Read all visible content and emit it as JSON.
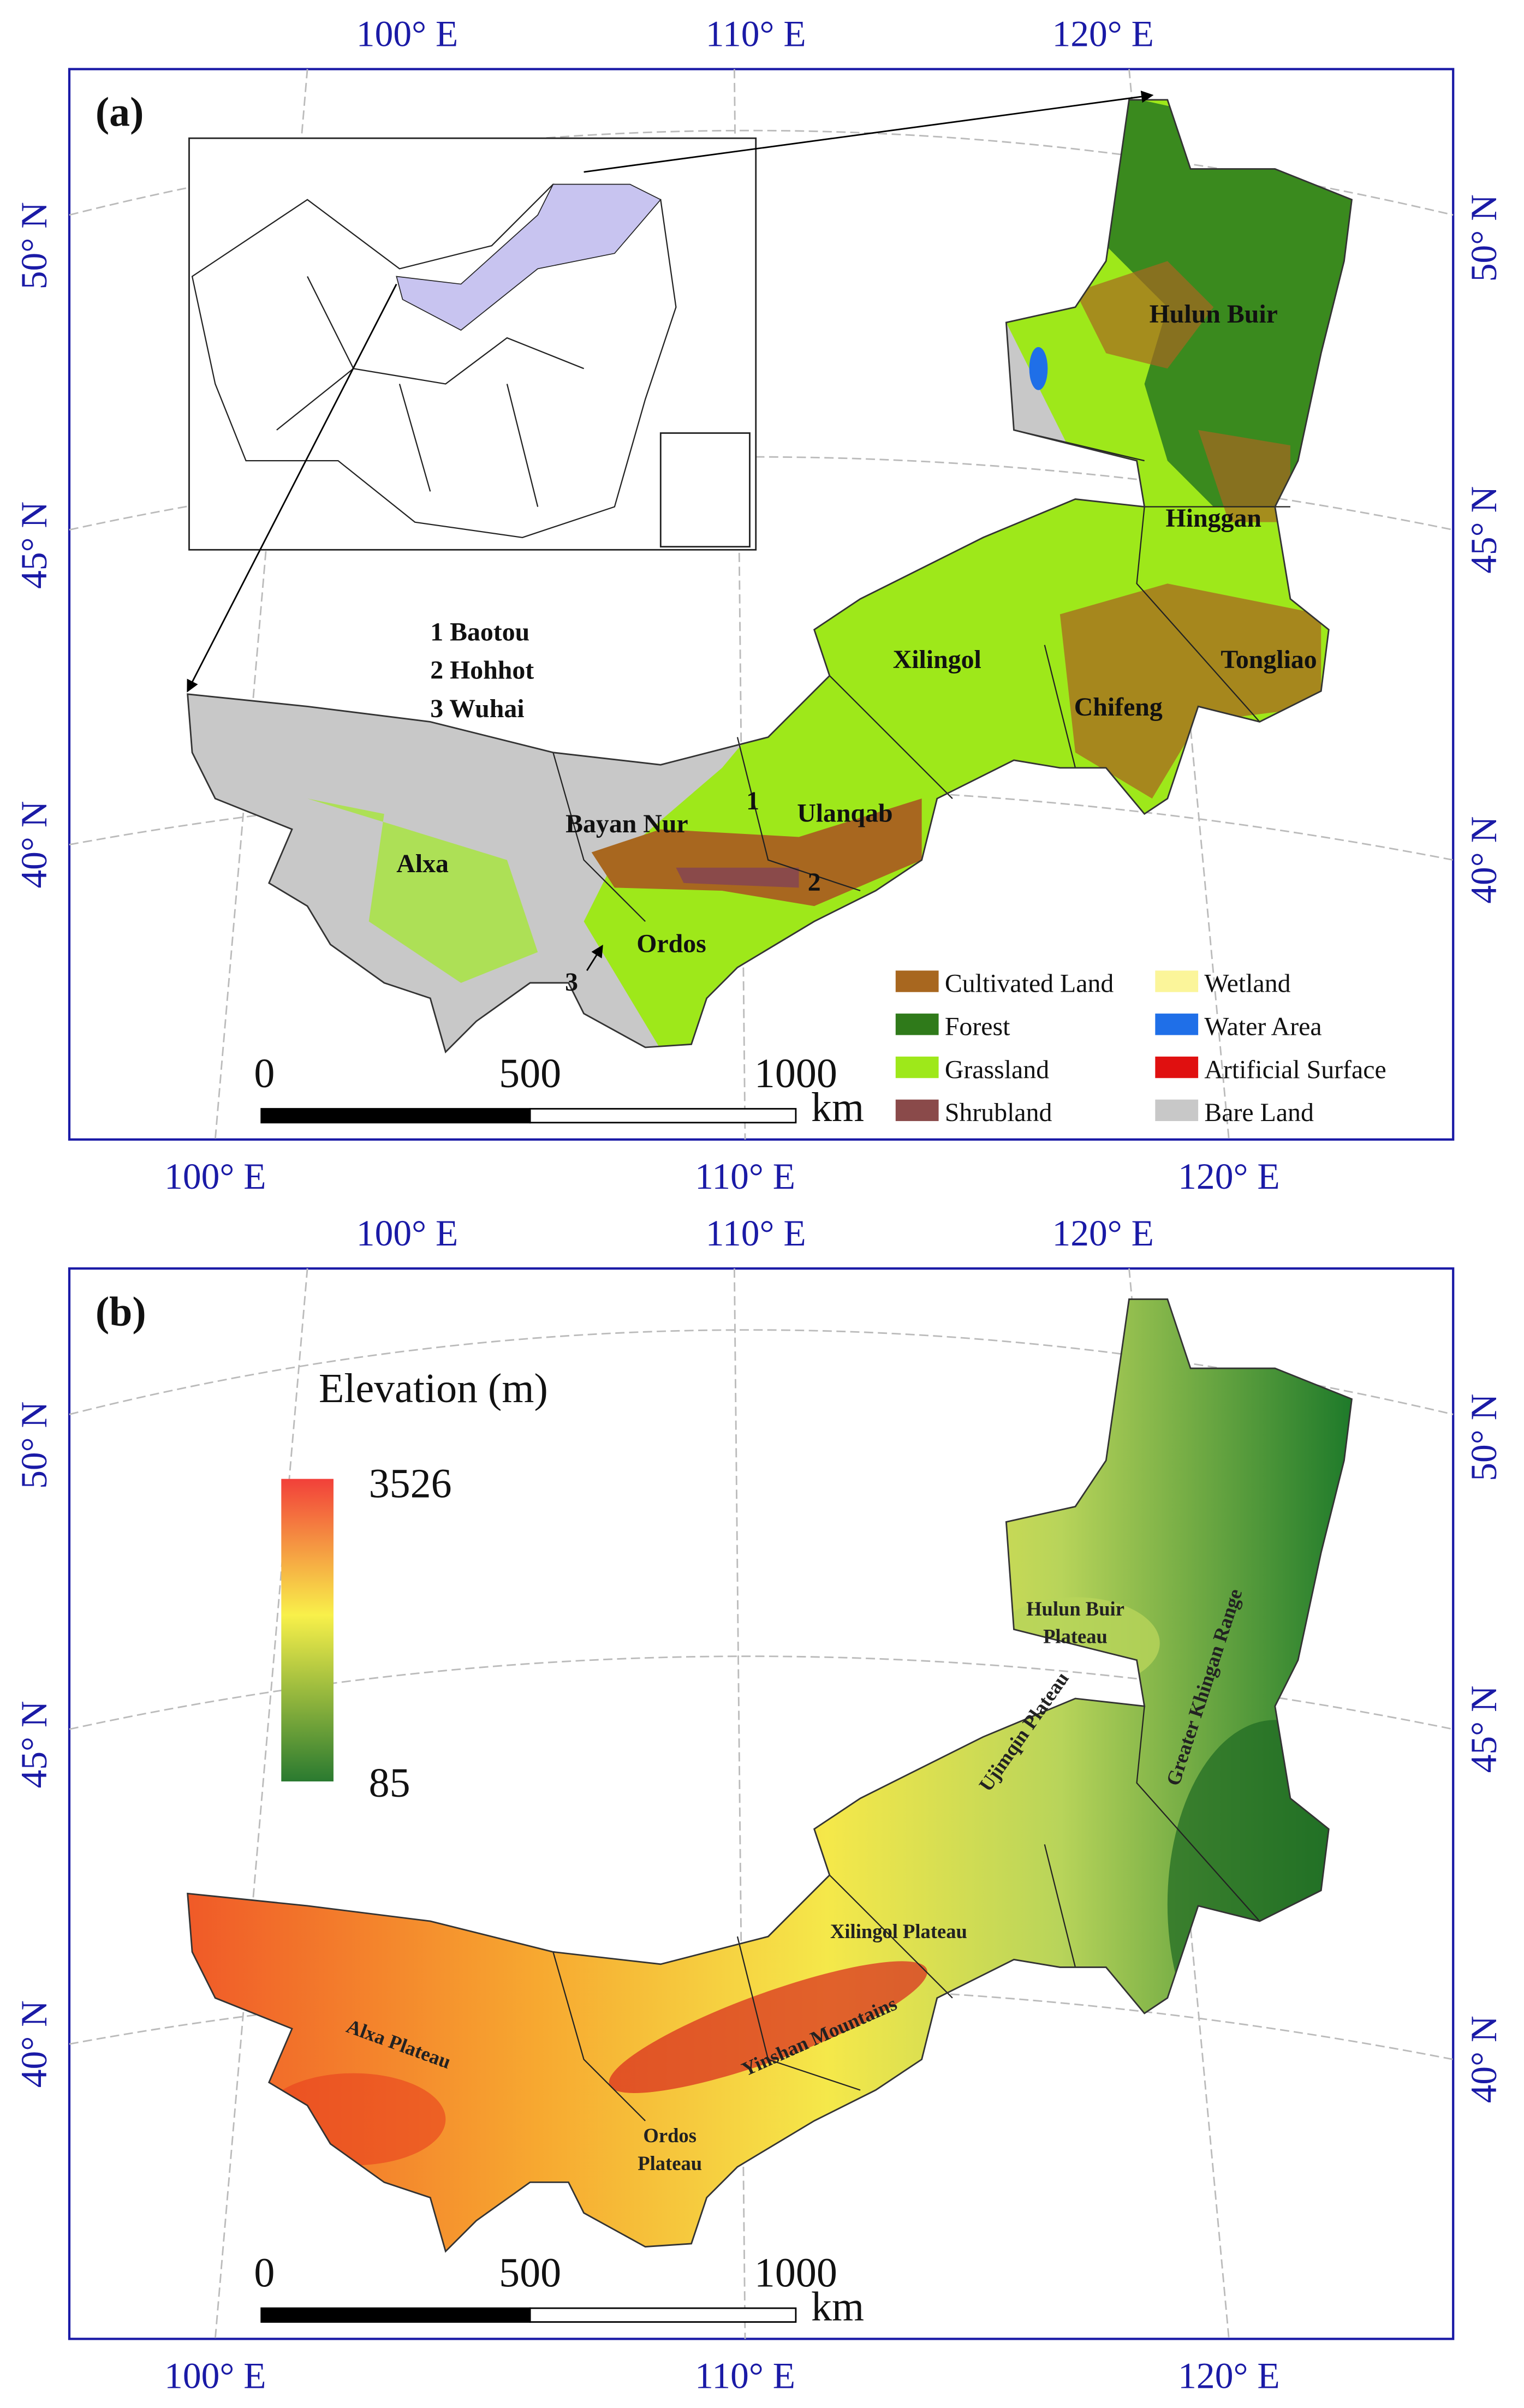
{
  "panel_a": {
    "label": "(a)",
    "lon_labels": [
      "100° E",
      "110° E",
      "120° E"
    ],
    "lat_labels": [
      "50° N",
      "45° N",
      "40° N"
    ],
    "city_list": [
      "1 Baotou",
      "2 Hohhot",
      "3 Wuhai"
    ],
    "regions": [
      "Hulun Buir",
      "Hinggan",
      "Xilingol",
      "Tongliao",
      "Chifeng",
      "Bayan Nur",
      "Ulanqab",
      "Alxa",
      "Ordos"
    ],
    "city_markers": [
      "1",
      "2",
      "3"
    ],
    "legend": [
      {
        "label": "Cultivated Land",
        "color": "#a8671f"
      },
      {
        "label": "Forest",
        "color": "#2f7a1a"
      },
      {
        "label": "Grassland",
        "color": "#9ee81a"
      },
      {
        "label": "Shrubland",
        "color": "#8a4a4a"
      },
      {
        "label": "Wetland",
        "color": "#fbf59a"
      },
      {
        "label": "Water Area",
        "color": "#1f6fe8"
      },
      {
        "label": "Artificial Surface",
        "color": "#e01010"
      },
      {
        "label": "Bare Land",
        "color": "#c8c8c8"
      }
    ],
    "scale_bar": {
      "ticks": [
        0,
        500,
        1000
      ],
      "unit": "km"
    }
  },
  "panel_b": {
    "label": "(b)",
    "lon_labels": [
      "100° E",
      "110° E",
      "120° E"
    ],
    "lat_labels": [
      "50° N",
      "45° N",
      "40° N"
    ],
    "colorbar": {
      "title": "Elevation (m)",
      "max": 3526,
      "min": 85
    },
    "features": [
      {
        "lines": [
          "Hulun Buir",
          "Plateau"
        ]
      },
      {
        "lines": [
          "Greater Khingan Range"
        ]
      },
      {
        "lines": [
          "Ujimqin Plateau"
        ]
      },
      {
        "lines": [
          "Xilingol Plateau"
        ]
      },
      {
        "lines": [
          "Yinshan Mountains"
        ]
      },
      {
        "lines": [
          "Alxa Plateau"
        ]
      },
      {
        "lines": [
          "Ordos",
          "Plateau"
        ]
      }
    ],
    "scale_bar": {
      "ticks": [
        0,
        500,
        1000
      ],
      "unit": "km"
    }
  }
}
